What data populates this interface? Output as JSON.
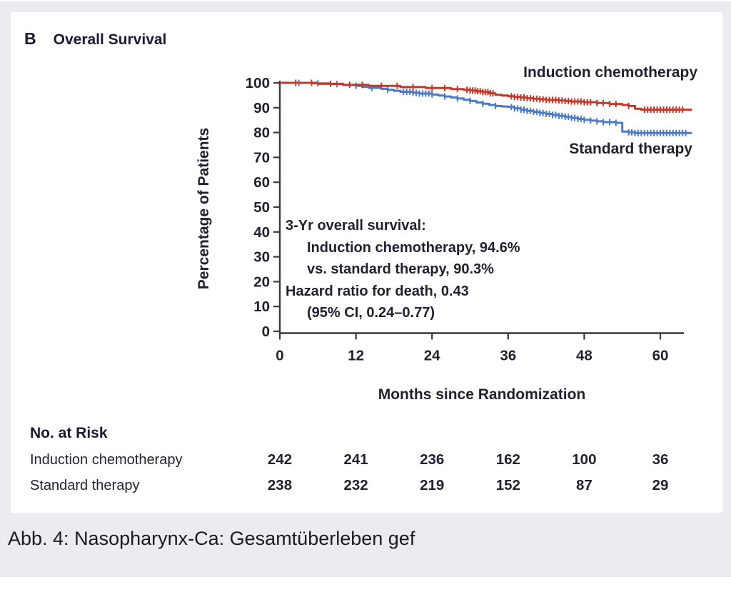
{
  "panel": {
    "label": "B",
    "title": "Overall Survival"
  },
  "chart_data": {
    "type": "line",
    "subtype": "kaplan-meier-step",
    "title": "Overall Survival",
    "xlabel": "Months since Randomization",
    "ylabel": "Percentage of Patients",
    "xlim": [
      0,
      66
    ],
    "ylim": [
      0,
      100
    ],
    "x_ticks": [
      0,
      12,
      24,
      36,
      48,
      60
    ],
    "y_ticks": [
      0,
      10,
      20,
      30,
      40,
      50,
      60,
      70,
      80,
      90,
      100
    ],
    "grid": false,
    "legend_position": "labels-on-curves",
    "series": [
      {
        "name": "Induction chemotherapy",
        "color": "#c13a2c",
        "points": [
          [
            0,
            100
          ],
          [
            5,
            100
          ],
          [
            6,
            99.6
          ],
          [
            9,
            99.6
          ],
          [
            10,
            99.2
          ],
          [
            13,
            99.2
          ],
          [
            14,
            98.8
          ],
          [
            18,
            98.8
          ],
          [
            19,
            98.3
          ],
          [
            22,
            98.3
          ],
          [
            23,
            97.9
          ],
          [
            26,
            97.9
          ],
          [
            27,
            97.5
          ],
          [
            29,
            97.2
          ],
          [
            30,
            96.9
          ],
          [
            31,
            96.6
          ],
          [
            32,
            96.3
          ],
          [
            33,
            95.8
          ],
          [
            34,
            95.2
          ],
          [
            35,
            94.9
          ],
          [
            36,
            94.6
          ],
          [
            37,
            94.3
          ],
          [
            38,
            94.1
          ],
          [
            39,
            93.8
          ],
          [
            40,
            93.6
          ],
          [
            41,
            93.4
          ],
          [
            42,
            93.1
          ],
          [
            44,
            92.9
          ],
          [
            45,
            92.7
          ],
          [
            46,
            92.5
          ],
          [
            48,
            92.2
          ],
          [
            50,
            91.9
          ],
          [
            52,
            91.5
          ],
          [
            54,
            91.1
          ],
          [
            55,
            90.7
          ],
          [
            56,
            89.6
          ],
          [
            57,
            89.2
          ],
          [
            65,
            89.2
          ]
        ],
        "censor_months": [
          2.5,
          5,
          8,
          11,
          13,
          16,
          18.5,
          21,
          24,
          26,
          28,
          29.5,
          30,
          30.4,
          30.8,
          31.2,
          31.6,
          32,
          32.4,
          32.8,
          33.2,
          33.6,
          36.5,
          37,
          37.5,
          38,
          38.5,
          39,
          39.5,
          40,
          40.5,
          41,
          41.5,
          42,
          42.5,
          43,
          43.5,
          44,
          44.5,
          45,
          45.5,
          46,
          46.5,
          47,
          47.5,
          48,
          48.5,
          49,
          50,
          51,
          52,
          53,
          55,
          57.5,
          58,
          58.5,
          59,
          59.5,
          60,
          60.5,
          61,
          61.5,
          62,
          62.5,
          63,
          63.5
        ]
      },
      {
        "name": "Standard therapy",
        "color": "#4d7ac5",
        "points": [
          [
            0,
            100
          ],
          [
            4,
            100
          ],
          [
            5,
            99.8
          ],
          [
            8,
            99.5
          ],
          [
            10,
            99.1
          ],
          [
            12,
            98.8
          ],
          [
            13,
            98.4
          ],
          [
            14,
            98.0
          ],
          [
            16,
            97.6
          ],
          [
            17,
            97.2
          ],
          [
            18,
            96.8
          ],
          [
            19,
            96.4
          ],
          [
            21,
            96.0
          ],
          [
            22,
            95.7
          ],
          [
            24,
            95.3
          ],
          [
            25,
            94.9
          ],
          [
            26,
            94.5
          ],
          [
            27,
            94.1
          ],
          [
            28,
            93.7
          ],
          [
            29,
            93.2
          ],
          [
            30,
            92.7
          ],
          [
            31,
            92.1
          ],
          [
            32,
            91.6
          ],
          [
            33,
            91.1
          ],
          [
            34,
            90.7
          ],
          [
            35,
            90.5
          ],
          [
            36,
            90.3
          ],
          [
            37,
            89.7
          ],
          [
            38,
            89.2
          ],
          [
            39,
            88.7
          ],
          [
            40,
            88.3
          ],
          [
            41,
            87.9
          ],
          [
            42,
            87.5
          ],
          [
            43,
            87.1
          ],
          [
            44,
            86.7
          ],
          [
            45,
            86.3
          ],
          [
            46,
            85.9
          ],
          [
            47,
            85.5
          ],
          [
            48,
            85.1
          ],
          [
            49,
            84.8
          ],
          [
            50,
            84.5
          ],
          [
            51,
            84.2
          ],
          [
            53,
            83.9
          ],
          [
            54,
            80.4
          ],
          [
            55,
            80.1
          ],
          [
            56,
            79.8
          ],
          [
            65,
            79.8
          ]
        ],
        "censor_months": [
          3,
          6,
          9,
          12,
          14.5,
          17,
          19.5,
          20,
          20.5,
          21,
          21.5,
          22,
          22.5,
          23,
          23.5,
          24,
          26,
          28,
          30,
          32,
          34,
          36.5,
          37,
          37.5,
          38,
          38.5,
          39,
          39.5,
          40,
          40.5,
          41,
          41.5,
          42,
          42.5,
          43,
          43.5,
          44,
          44.5,
          45,
          45.5,
          46,
          46.5,
          47,
          47.5,
          48,
          49,
          50,
          51,
          52,
          53,
          55,
          55.5,
          56,
          56.5,
          57,
          57.5,
          58,
          58.5,
          59,
          59.5,
          60,
          60.5,
          61,
          61.5,
          62,
          62.5,
          63,
          63.5,
          64
        ]
      }
    ],
    "annotation": {
      "lines": [
        "3-Yr overall survival:",
        "Induction chemotherapy, 94.6%",
        "vs. standard therapy, 90.3%",
        "Hazard ratio for death, 0.43",
        "(95% CI, 0.24–0.77)"
      ]
    }
  },
  "risk_table": {
    "title": "No. at Risk",
    "columns": [
      0,
      12,
      24,
      36,
      48,
      60
    ],
    "rows": [
      {
        "label": "Induction chemotherapy",
        "values": [
          242,
          241,
          236,
          162,
          100,
          36
        ]
      },
      {
        "label": "Standard therapy",
        "values": [
          238,
          232,
          219,
          152,
          87,
          29
        ]
      }
    ]
  },
  "caption": "Abb. 4: Nasopharynx-Ca: Gesamtüberleben gef",
  "colors": {
    "induction": "#c13a2c",
    "standard": "#4d7ac5",
    "text": "#221f31",
    "axis": "#3a3642",
    "background": "#edebf2",
    "panel": "#ffffff"
  }
}
